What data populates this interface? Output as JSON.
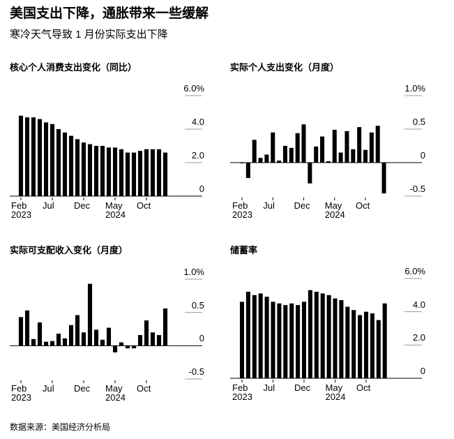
{
  "title": "美国支出下降，通胀带来一些缓解",
  "subtitle": "寒冷天气导致 1 月份实际支出下降",
  "source": "数据来源：美国经济分析局",
  "chart_data": [
    {
      "type": "bar",
      "title": "核心个人消费支出变化（同比）",
      "color": "#000000",
      "categories": [
        "Feb\n2023",
        null,
        null,
        null,
        null,
        "Jul",
        null,
        null,
        null,
        null,
        "Dec",
        null,
        null,
        null,
        null,
        "May\n2024",
        null,
        null,
        null,
        null,
        "Oct",
        null,
        null,
        null
      ],
      "values": [
        4.8,
        4.7,
        4.7,
        4.6,
        4.4,
        4.3,
        4.0,
        3.8,
        3.6,
        3.4,
        3.2,
        3.1,
        3.0,
        3.0,
        2.9,
        2.9,
        2.8,
        2.6,
        2.6,
        2.7,
        2.8,
        2.8,
        2.8,
        2.6
      ],
      "ylim": [
        0,
        6
      ],
      "yticks": [
        {
          "value": 6,
          "label": "6.0%"
        },
        {
          "value": 4,
          "label": "4.0"
        },
        {
          "value": 2,
          "label": "2.0"
        },
        0
      ]
    },
    {
      "type": "bar",
      "title": "实际个人支出变化（月度）",
      "color": "#000000",
      "categories": [
        "Feb\n2023",
        null,
        null,
        null,
        null,
        "Jul",
        null,
        null,
        null,
        null,
        "Dec",
        null,
        null,
        null,
        null,
        "May\n2024",
        null,
        null,
        null,
        null,
        "Oct",
        null,
        null,
        null
      ],
      "values": [
        -0.01,
        -0.23,
        0.34,
        0.07,
        0.12,
        0.45,
        0.03,
        0.25,
        0.22,
        0.44,
        0.57,
        -0.31,
        0.24,
        0.39,
        0.02,
        0.49,
        0.15,
        0.47,
        0.2,
        0.53,
        0.19,
        0.45,
        0.55,
        -0.46
      ],
      "ylim": [
        -0.5,
        1.0
      ],
      "yticks": [
        {
          "value": 1.0,
          "label": "1.0%"
        },
        0.5,
        0,
        -0.5
      ]
    },
    {
      "type": "bar",
      "title": "实际可支配收入变化（月度）",
      "color": "#000000",
      "categories": [
        "Feb\n2023",
        null,
        null,
        null,
        null,
        "Jul",
        null,
        null,
        null,
        null,
        "Dec",
        null,
        null,
        null,
        null,
        "May\n2024",
        null,
        null,
        null,
        null,
        "Oct",
        null,
        null,
        null
      ],
      "values": [
        0.43,
        0.53,
        0.1,
        0.35,
        0.06,
        0.07,
        0.18,
        0.11,
        0.31,
        0.46,
        0.2,
        0.93,
        0.24,
        0.09,
        0.27,
        -0.1,
        0.05,
        -0.04,
        -0.04,
        0.16,
        0.38,
        0.2,
        0.16,
        0.56
      ],
      "ylim": [
        -0.5,
        1.0
      ],
      "yticks": [
        {
          "value": 1.0,
          "label": "1.0%"
        },
        0.5,
        0,
        -0.5
      ]
    },
    {
      "type": "bar",
      "title": "储蓄率",
      "color": "#000000",
      "categories": [
        "Feb\n2023",
        null,
        null,
        null,
        null,
        "Jul",
        null,
        null,
        null,
        null,
        "Dec",
        null,
        null,
        null,
        null,
        "May\n2024",
        null,
        null,
        null,
        null,
        "Oct",
        null,
        null,
        null
      ],
      "values": [
        4.6,
        5.2,
        5.0,
        5.1,
        4.9,
        4.6,
        4.5,
        4.4,
        4.5,
        4.4,
        4.6,
        5.3,
        5.2,
        5.1,
        5.0,
        4.8,
        4.7,
        4.3,
        4.1,
        3.8,
        4.0,
        3.9,
        3.5,
        4.5
      ],
      "ylim": [
        0,
        6
      ],
      "yticks": [
        {
          "value": 6,
          "label": "6.0%"
        },
        {
          "value": 4,
          "label": "4.0"
        },
        {
          "value": 2,
          "label": "2.0"
        },
        0
      ]
    }
  ]
}
